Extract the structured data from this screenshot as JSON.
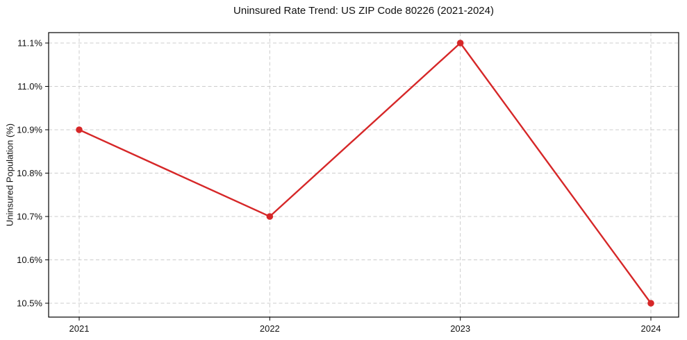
{
  "chart_data": {
    "type": "line",
    "title": "Uninsured Rate Trend: US ZIP Code 80226 (2021-2024)",
    "xlabel": "",
    "ylabel": "Uninsured Population (%)",
    "categories": [
      "2021",
      "2022",
      "2023",
      "2024"
    ],
    "series": [
      {
        "name": "Uninsured Population (%)",
        "values": [
          10.9,
          10.7,
          11.1,
          10.5
        ],
        "color": "#d62728",
        "marker": "circle"
      }
    ],
    "y_ticks": [
      10.5,
      10.6,
      10.7,
      10.8,
      10.9,
      11.0,
      11.1
    ],
    "y_tick_labels": [
      "10.5%",
      "10.6%",
      "10.7%",
      "10.8%",
      "10.9%",
      "11.0%",
      "11.1%"
    ],
    "x_tick_labels": [
      "2021",
      "2022",
      "2023",
      "2024"
    ],
    "ylim": [
      10.468,
      11.124
    ],
    "grid": true,
    "grid_color": "#cccccc",
    "spine_color": "#000000",
    "background": "#ffffff",
    "legend_position": "none"
  }
}
